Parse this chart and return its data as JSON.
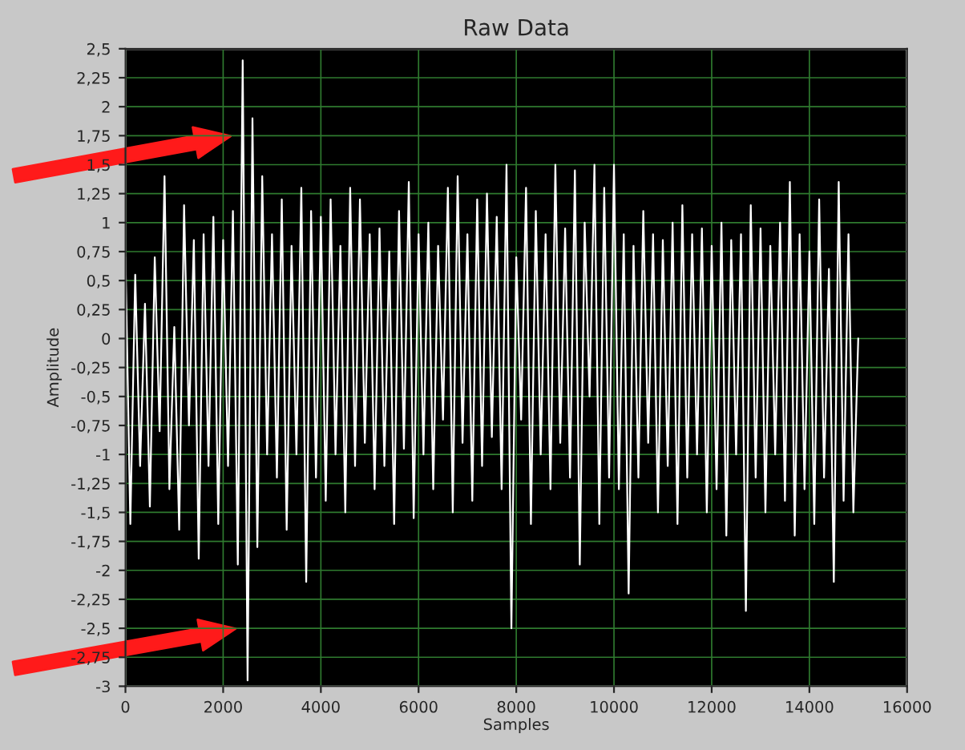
{
  "chart_data": {
    "type": "line",
    "title": "Raw Data",
    "xlabel": "Samples",
    "ylabel": "Amplitude",
    "x": [
      0,
      100,
      200,
      300,
      400,
      500,
      600,
      700,
      800,
      900,
      1000,
      1100,
      1200,
      1300,
      1400,
      1500,
      1600,
      1700,
      1800,
      1900,
      2000,
      2100,
      2200,
      2300,
      2400,
      2500,
      2600,
      2700,
      2800,
      2900,
      3000,
      3100,
      3200,
      3300,
      3400,
      3500,
      3600,
      3700,
      3800,
      3900,
      4000,
      4100,
      4200,
      4300,
      4400,
      4500,
      4600,
      4700,
      4800,
      4900,
      5000,
      5100,
      5200,
      5300,
      5400,
      5500,
      5600,
      5700,
      5800,
      5900,
      6000,
      6100,
      6200,
      6300,
      6400,
      6500,
      6600,
      6700,
      6800,
      6900,
      7000,
      7100,
      7200,
      7300,
      7400,
      7500,
      7600,
      7700,
      7800,
      7900,
      8000,
      8100,
      8200,
      8300,
      8400,
      8500,
      8600,
      8700,
      8800,
      8900,
      9000,
      9100,
      9200,
      9300,
      9400,
      9500,
      9600,
      9700,
      9800,
      9900,
      10000,
      10100,
      10200,
      10300,
      10400,
      10500,
      10600,
      10700,
      10800,
      10900,
      11000,
      11100,
      11200,
      11300,
      11400,
      11500,
      11600,
      11700,
      11800,
      11900,
      12000,
      12100,
      12200,
      12300,
      12400,
      12500,
      12600,
      12700,
      12800,
      12900,
      13000,
      13100,
      13200,
      13300,
      13400,
      13500,
      13600,
      13700,
      13800,
      13900,
      14000,
      14100,
      14200,
      14300,
      14400,
      14500,
      14600,
      14700,
      14800,
      14900,
      15000
    ],
    "series": [
      {
        "color": "#ffffff",
        "values": [
          0.7,
          -1.6,
          0.55,
          -1.1,
          0.3,
          -1.45,
          0.7,
          -0.8,
          1.4,
          -1.3,
          0.1,
          -1.65,
          1.15,
          -0.75,
          0.85,
          -1.9,
          0.9,
          -1.1,
          1.05,
          -1.6,
          0.85,
          -1.1,
          1.1,
          -1.95,
          2.4,
          -2.95,
          1.9,
          -1.8,
          1.4,
          -1.0,
          0.9,
          -1.2,
          1.2,
          -1.65,
          0.8,
          -1.0,
          1.3,
          -2.1,
          1.1,
          -1.2,
          1.05,
          -1.4,
          1.2,
          -1.0,
          0.8,
          -1.5,
          1.3,
          -1.1,
          1.2,
          -0.9,
          0.9,
          -1.3,
          0.95,
          -1.1,
          0.75,
          -1.6,
          1.1,
          -0.95,
          1.35,
          -1.55,
          0.9,
          -1.0,
          1.0,
          -1.3,
          0.8,
          -0.7,
          1.3,
          -1.5,
          1.4,
          -0.9,
          0.9,
          -1.4,
          1.2,
          -1.1,
          1.25,
          -0.85,
          1.05,
          -1.3,
          1.5,
          -2.5,
          0.7,
          -0.7,
          1.3,
          -1.6,
          1.1,
          -1.0,
          0.9,
          -1.3,
          1.5,
          -0.9,
          0.95,
          -1.2,
          1.45,
          -1.95,
          1.0,
          -0.5,
          1.5,
          -1.6,
          1.3,
          -1.2,
          1.5,
          -1.3,
          0.9,
          -2.2,
          0.8,
          -1.2,
          1.1,
          -0.9,
          0.9,
          -1.5,
          0.85,
          -1.1,
          1.0,
          -1.6,
          1.15,
          -1.2,
          0.9,
          -1.0,
          0.95,
          -1.5,
          0.8,
          -1.3,
          1.0,
          -1.7,
          0.85,
          -1.0,
          0.9,
          -2.35,
          1.15,
          -1.2,
          0.95,
          -1.5,
          0.8,
          -1.0,
          1.0,
          -1.4,
          1.35,
          -1.7,
          0.9,
          -1.3,
          0.75,
          -1.6,
          1.2,
          -1.2,
          0.6,
          -2.1,
          1.35,
          -1.4,
          0.9,
          -1.5,
          0.0
        ]
      }
    ],
    "xlim": [
      0,
      16000
    ],
    "xticks": [
      0,
      2000,
      4000,
      6000,
      8000,
      10000,
      12000,
      14000,
      16000
    ],
    "ylim": [
      -3,
      2.5
    ],
    "yticks": [
      {
        "value": -3,
        "label": "-3"
      },
      {
        "value": -2.75,
        "label": "-2,75"
      },
      {
        "value": -2.5,
        "label": "-2,5"
      },
      {
        "value": -2.25,
        "label": "-2,25"
      },
      {
        "value": -2,
        "label": "-2"
      },
      {
        "value": -1.75,
        "label": "-1,75"
      },
      {
        "value": -1.5,
        "label": "-1,5"
      },
      {
        "value": -1.25,
        "label": "-1,25"
      },
      {
        "value": -1,
        "label": "-1"
      },
      {
        "value": -0.75,
        "label": "-0,75"
      },
      {
        "value": -0.5,
        "label": "-0,5"
      },
      {
        "value": -0.25,
        "label": "-0,25"
      },
      {
        "value": 0,
        "label": "0"
      },
      {
        "value": 0.25,
        "label": "0,25"
      },
      {
        "value": 0.5,
        "label": "0,5"
      },
      {
        "value": 0.75,
        "label": "0,75"
      },
      {
        "value": 1,
        "label": "1"
      },
      {
        "value": 1.25,
        "label": "1,25"
      },
      {
        "value": 1.5,
        "label": "1,5"
      },
      {
        "value": 1.75,
        "label": "1,75"
      },
      {
        "value": 2,
        "label": "2"
      },
      {
        "value": 2.25,
        "label": "2,25"
      },
      {
        "value": 2.5,
        "label": "2,5"
      }
    ],
    "grid": true
  }
}
